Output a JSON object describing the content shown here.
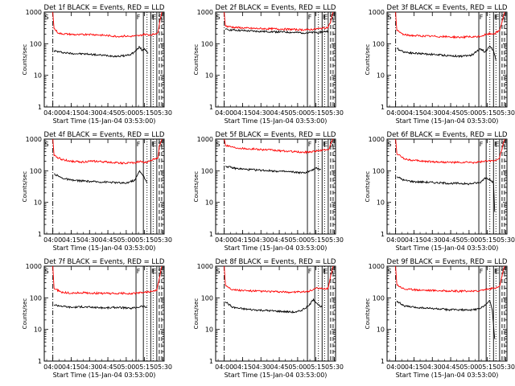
{
  "figure": {
    "xlabel": "Start Time (15-Jan-04 03:53:00)",
    "ylabel": "Counts/sec",
    "xtick_labels": [
      "04:00",
      "04:15",
      "04:30",
      "04:45",
      "05:00",
      "05:15",
      "05:30"
    ],
    "ytick_labels": [
      "1",
      "10",
      "100",
      "1000"
    ],
    "flag_labels": [
      "S",
      "F",
      "F",
      "E",
      "S"
    ],
    "colors": {
      "events": "#000000",
      "lld": "#ff0000",
      "axes": "#000000",
      "background": "#ffffff"
    }
  },
  "chart_data": [
    {
      "type": "line",
      "title": "Det 1f BLACK = Events, RED = LLD",
      "x_unit": "minutes since 03:53",
      "xlim": [
        0,
        98
      ],
      "ylim": [
        1,
        1000
      ],
      "yscale": "log",
      "vlines": {
        "dashdot": [
          7
        ],
        "solid": [
          75,
          81,
          87,
          92
        ],
        "dotted": [
          84,
          89
        ],
        "dashed": [
          94,
          96
        ]
      },
      "series": [
        {
          "name": "Events",
          "color": "#000000",
          "x": [
            7,
            8,
            12,
            20,
            28,
            36,
            44,
            52,
            60,
            66,
            70,
            74,
            78,
            80,
            82,
            85,
            87
          ],
          "y": [
            null,
            60,
            55,
            50,
            48,
            47,
            44,
            42,
            40,
            42,
            45,
            55,
            80,
            60,
            70,
            50,
            null
          ]
        },
        {
          "name": "LLD",
          "color": "#ff0000",
          "x": [
            7,
            8,
            12,
            20,
            28,
            36,
            44,
            52,
            60,
            66,
            70,
            74,
            78,
            82,
            86,
            90,
            93,
            94,
            96
          ],
          "y": [
            1000,
            300,
            210,
            200,
            190,
            200,
            190,
            180,
            170,
            175,
            170,
            175,
            180,
            200,
            190,
            200,
            230,
            400,
            1000
          ]
        }
      ]
    },
    {
      "type": "line",
      "title": "Det 2f BLACK = Events, RED = LLD",
      "x_unit": "minutes since 03:53",
      "xlim": [
        0,
        98
      ],
      "ylim": [
        1,
        1000
      ],
      "yscale": "log",
      "vlines": {
        "dashdot": [
          7
        ],
        "solid": [
          75,
          81,
          87,
          92
        ],
        "dotted": [
          84,
          89
        ],
        "dashed": [
          94,
          96
        ]
      },
      "series": [
        {
          "name": "Events",
          "color": "#000000",
          "x": [
            7,
            8,
            15,
            25,
            35,
            45,
            55,
            65,
            75,
            85,
            92
          ],
          "y": [
            null,
            280,
            270,
            255,
            245,
            240,
            235,
            225,
            220,
            230,
            250
          ]
        },
        {
          "name": "LLD",
          "color": "#ff0000",
          "x": [
            7,
            8,
            15,
            25,
            35,
            45,
            55,
            65,
            75,
            85,
            92,
            94,
            96
          ],
          "y": [
            1000,
            360,
            330,
            310,
            300,
            295,
            290,
            280,
            275,
            300,
            330,
            500,
            1000
          ]
        }
      ]
    },
    {
      "type": "line",
      "title": "Det 3f BLACK = Events, RED = LLD",
      "x_unit": "minutes since 03:53",
      "xlim": [
        0,
        98
      ],
      "ylim": [
        1,
        1000
      ],
      "yscale": "log",
      "vlines": {
        "dashdot": [
          7
        ],
        "solid": [
          75,
          81,
          87,
          92
        ],
        "dotted": [
          84,
          89
        ],
        "dashed": [
          94,
          96
        ]
      },
      "series": [
        {
          "name": "Events",
          "color": "#000000",
          "x": [
            7,
            8,
            14,
            22,
            30,
            40,
            50,
            60,
            66,
            70,
            76,
            80,
            84,
            87,
            89,
            90
          ],
          "y": [
            null,
            70,
            55,
            50,
            48,
            45,
            42,
            40,
            42,
            45,
            70,
            55,
            85,
            60,
            30,
            null
          ]
        },
        {
          "name": "LLD",
          "color": "#ff0000",
          "x": [
            7,
            8,
            14,
            22,
            30,
            40,
            50,
            60,
            66,
            70,
            76,
            82,
            88,
            92,
            94,
            96
          ],
          "y": [
            1000,
            260,
            190,
            180,
            175,
            170,
            165,
            160,
            165,
            160,
            170,
            200,
            210,
            260,
            500,
            1000
          ]
        }
      ]
    },
    {
      "type": "line",
      "title": "Det 4f BLACK = Events, RED = LLD",
      "x_unit": "minutes since 03:53",
      "xlim": [
        0,
        98
      ],
      "ylim": [
        1,
        1000
      ],
      "yscale": "log",
      "vlines": {
        "dashdot": [
          7
        ],
        "solid": [
          75,
          81,
          87,
          92
        ],
        "dotted": [
          84,
          89
        ],
        "dashed": [
          94,
          96
        ]
      },
      "series": [
        {
          "name": "Events",
          "color": "#000000",
          "x": [
            7,
            8,
            14,
            22,
            30,
            40,
            50,
            60,
            66,
            70,
            74,
            78,
            81,
            84,
            86
          ],
          "y": [
            null,
            80,
            60,
            50,
            48,
            45,
            44,
            42,
            40,
            45,
            50,
            100,
            70,
            40,
            null
          ]
        },
        {
          "name": "LLD",
          "color": "#ff0000",
          "x": [
            7,
            8,
            14,
            22,
            30,
            40,
            50,
            60,
            66,
            70,
            74,
            78,
            82,
            86,
            90,
            93,
            94,
            96
          ],
          "y": [
            1000,
            300,
            230,
            200,
            190,
            200,
            190,
            180,
            170,
            180,
            175,
            200,
            180,
            200,
            240,
            260,
            600,
            1000
          ]
        }
      ]
    },
    {
      "type": "line",
      "title": "Det 5f BLACK = Events, RED = LLD",
      "x_unit": "minutes since 03:53",
      "xlim": [
        0,
        98
      ],
      "ylim": [
        1,
        1000
      ],
      "yscale": "log",
      "vlines": {
        "dashdot": [
          7
        ],
        "solid": [
          75,
          81,
          87,
          92
        ],
        "dotted": [
          84,
          89
        ],
        "dashed": [
          94,
          96
        ]
      },
      "series": [
        {
          "name": "Events",
          "color": "#000000",
          "x": [
            7,
            8,
            15,
            25,
            35,
            45,
            55,
            65,
            72,
            78,
            82,
            86,
            90
          ],
          "y": [
            null,
            140,
            120,
            110,
            105,
            100,
            95,
            90,
            85,
            100,
            120,
            110,
            null
          ]
        },
        {
          "name": "LLD",
          "color": "#ff0000",
          "x": [
            7,
            8,
            15,
            25,
            35,
            45,
            55,
            65,
            72,
            78,
            84,
            90,
            93,
            94,
            96
          ],
          "y": [
            1000,
            650,
            550,
            500,
            480,
            450,
            420,
            400,
            380,
            400,
            430,
            460,
            500,
            700,
            1000
          ]
        }
      ]
    },
    {
      "type": "line",
      "title": "Det 6f BLACK = Events, RED = LLD",
      "x_unit": "minutes since 03:53",
      "xlim": [
        0,
        98
      ],
      "ylim": [
        1,
        1000
      ],
      "yscale": "log",
      "vlines": {
        "dashdot": [
          7
        ],
        "solid": [
          75,
          81,
          87,
          92
        ],
        "dotted": [
          84,
          89
        ],
        "dashed": [
          94,
          96
        ]
      },
      "series": [
        {
          "name": "Events",
          "color": "#000000",
          "x": [
            7,
            8,
            14,
            22,
            30,
            40,
            50,
            60,
            66,
            70,
            76,
            80,
            84,
            87,
            88,
            89
          ],
          "y": [
            null,
            65,
            50,
            45,
            44,
            42,
            40,
            40,
            38,
            40,
            42,
            60,
            55,
            40,
            5,
            null
          ]
        },
        {
          "name": "LLD",
          "color": "#ff0000",
          "x": [
            7,
            8,
            14,
            22,
            30,
            40,
            50,
            60,
            66,
            70,
            76,
            82,
            88,
            92,
            94,
            96
          ],
          "y": [
            1000,
            350,
            240,
            210,
            200,
            190,
            185,
            180,
            185,
            180,
            190,
            200,
            210,
            260,
            500,
            1000
          ]
        }
      ]
    },
    {
      "type": "line",
      "title": "Det 7f BLACK = Events, RED = LLD",
      "x_unit": "minutes since 03:53",
      "xlim": [
        0,
        98
      ],
      "ylim": [
        1,
        1000
      ],
      "yscale": "log",
      "vlines": {
        "dashdot": [
          7
        ],
        "solid": [
          75,
          81,
          87,
          92
        ],
        "dotted": [
          84,
          89
        ],
        "dashed": [
          94,
          96
        ]
      },
      "series": [
        {
          "name": "Events",
          "color": "#000000",
          "x": [
            7,
            8,
            14,
            22,
            30,
            40,
            50,
            60,
            66,
            70,
            76,
            80,
            84,
            86
          ],
          "y": [
            null,
            60,
            55,
            50,
            52,
            50,
            48,
            50,
            48,
            46,
            50,
            55,
            50,
            null
          ]
        },
        {
          "name": "LLD",
          "color": "#ff0000",
          "x": [
            7,
            8,
            14,
            22,
            30,
            40,
            50,
            60,
            66,
            70,
            76,
            82,
            88,
            92,
            94,
            96
          ],
          "y": [
            1000,
            200,
            150,
            140,
            145,
            140,
            138,
            135,
            140,
            135,
            140,
            150,
            160,
            170,
            400,
            1000
          ]
        }
      ]
    },
    {
      "type": "line",
      "title": "Det 8f BLACK = Events, RED = LLD",
      "x_unit": "minutes since 03:53",
      "xlim": [
        0,
        98
      ],
      "ylim": [
        1,
        1000
      ],
      "yscale": "log",
      "vlines": {
        "dashdot": [
          7
        ],
        "solid": [
          75,
          81,
          87,
          92
        ],
        "dotted": [
          84,
          89
        ],
        "dashed": [
          94,
          96
        ]
      },
      "series": [
        {
          "name": "Events",
          "color": "#000000",
          "x": [
            7,
            8,
            14,
            22,
            30,
            40,
            50,
            60,
            66,
            70,
            76,
            80,
            84,
            87,
            89
          ],
          "y": [
            null,
            75,
            50,
            45,
            42,
            40,
            38,
            36,
            35,
            40,
            55,
            90,
            60,
            50,
            null
          ]
        },
        {
          "name": "LLD",
          "color": "#ff0000",
          "x": [
            7,
            8,
            14,
            22,
            30,
            40,
            50,
            60,
            66,
            70,
            76,
            82,
            88,
            92,
            94,
            96
          ],
          "y": [
            1000,
            250,
            180,
            170,
            165,
            160,
            155,
            150,
            155,
            150,
            160,
            200,
            190,
            200,
            500,
            1000
          ]
        }
      ]
    },
    {
      "type": "line",
      "title": "Det 9f BLACK = Events, RED = LLD",
      "x_unit": "minutes since 03:53",
      "xlim": [
        0,
        98
      ],
      "ylim": [
        1,
        1000
      ],
      "yscale": "log",
      "vlines": {
        "dashdot": [
          7
        ],
        "solid": [
          75,
          81,
          87,
          92
        ],
        "dotted": [
          84,
          89
        ],
        "dashed": [
          94,
          96
        ]
      },
      "series": [
        {
          "name": "Events",
          "color": "#000000",
          "x": [
            7,
            8,
            14,
            22,
            30,
            40,
            50,
            60,
            66,
            70,
            76,
            80,
            84,
            86,
            88,
            89
          ],
          "y": [
            null,
            80,
            55,
            50,
            48,
            45,
            42,
            42,
            40,
            42,
            45,
            60,
            80,
            40,
            5,
            null
          ]
        },
        {
          "name": "LLD",
          "color": "#ff0000",
          "x": [
            7,
            8,
            14,
            22,
            30,
            40,
            50,
            60,
            66,
            70,
            76,
            82,
            88,
            92,
            94,
            96
          ],
          "y": [
            1000,
            260,
            190,
            180,
            175,
            170,
            165,
            160,
            165,
            160,
            170,
            190,
            200,
            230,
            500,
            1000
          ]
        }
      ]
    }
  ]
}
